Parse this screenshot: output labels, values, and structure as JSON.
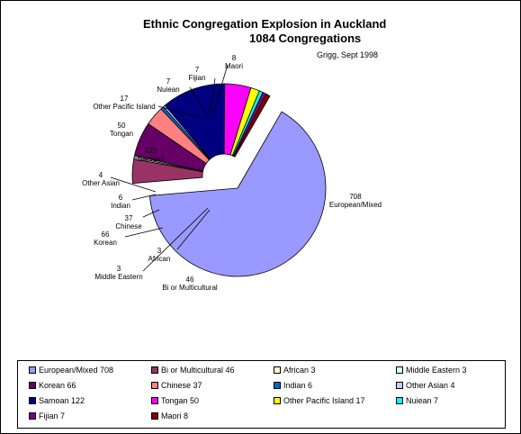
{
  "title": "Ethnic Congregation Explosion in Auckland",
  "subtitle": "1084 Congregations",
  "source": "Grigg, Sept 1998",
  "chart_data": {
    "type": "pie",
    "title": "Ethnic Congregation Explosion in Auckland",
    "subtitle": "1084 Congregations",
    "total": 1084,
    "slices": [
      {
        "name": "European/Mixed",
        "value": 708,
        "color": "#9999ff",
        "legend": "European/Mixed 708",
        "label_name": "European/Mixed",
        "label_value": "708"
      },
      {
        "name": "Bi or Multicultural",
        "value": 46,
        "color": "#993366",
        "legend": "Bi or Multicultural 46",
        "label_name": "Bi or Multicultural",
        "label_value": "46"
      },
      {
        "name": "African",
        "value": 3,
        "color": "#ffffcc",
        "legend": "African 3",
        "label_name": "African",
        "label_value": "3"
      },
      {
        "name": "Middle Eastern",
        "value": 3,
        "color": "#ccffff",
        "legend": "Middle Eastern 3",
        "label_name": "Middle Eastern",
        "label_value": "3"
      },
      {
        "name": "Korean",
        "value": 66,
        "color": "#660066",
        "legend": "Korean 66",
        "label_name": "Korean",
        "label_value": "66"
      },
      {
        "name": "Chinese",
        "value": 37,
        "color": "#ff8080",
        "legend": "Chinese 37",
        "label_name": "Chinese",
        "label_value": "37"
      },
      {
        "name": "Indian",
        "value": 6,
        "color": "#0066cc",
        "legend": "Indian 6",
        "label_name": "Indian",
        "label_value": "6"
      },
      {
        "name": "Other Asian",
        "value": 4,
        "color": "#ccccff",
        "legend": "Other Asian 4",
        "label_name": "Other Asian",
        "label_value": "4"
      },
      {
        "name": "Samoan",
        "value": 122,
        "color": "#000080",
        "legend": "Samoan 122",
        "label_name": "Samoan",
        "label_value": "122"
      },
      {
        "name": "Tongan",
        "value": 50,
        "color": "#ff00ff",
        "legend": "Tongan 50",
        "label_name": "Tongan",
        "label_value": "50"
      },
      {
        "name": "Other Pacific Island",
        "value": 17,
        "color": "#ffff00",
        "legend": "Other Pacific Island 17",
        "label_name": "Other Pacific Island",
        "label_value": "17"
      },
      {
        "name": "Nuiean",
        "value": 7,
        "color": "#00ffff",
        "legend": "Nuiean 7",
        "label_name": "Nuiean",
        "label_value": "7"
      },
      {
        "name": "Fijian",
        "value": 7,
        "color": "#800080",
        "legend": "Fijian 7",
        "label_name": "Fijian",
        "label_value": "7"
      },
      {
        "name": "Maori",
        "value": 8,
        "color": "#800000",
        "legend": "Maori 8",
        "label_name": "Maori",
        "label_value": "8"
      }
    ],
    "legend_placement": "bottom"
  }
}
